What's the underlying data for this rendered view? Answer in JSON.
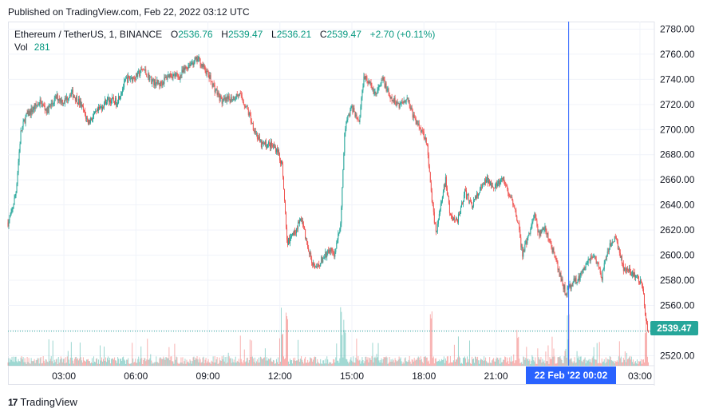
{
  "header": {
    "published": "Published on TradingView.com, Feb 22, 2022 03:12 UTC"
  },
  "legend": {
    "symbol": "Ethereum / TetherUS, 1, BINANCE",
    "o_label": "O",
    "o_value": "2536.76",
    "h_label": "H",
    "h_value": "2539.47",
    "l_label": "L",
    "l_value": "2536.21",
    "c_label": "C",
    "c_value": "2539.47",
    "change": "+2.70 (+0.11%)",
    "vol_label": "Vol",
    "vol_value": "281"
  },
  "crosshair": {
    "date_label": "22 Feb '22   00:02"
  },
  "brand": {
    "logo": "17",
    "name": "TradingView"
  },
  "colors": {
    "up": "#26a69a",
    "down": "#ef5350",
    "crosshair": "#2962ff",
    "grid": "#f0f3fa",
    "price_line": "#26a69a"
  },
  "chart_data": {
    "type": "candlestick",
    "title": "Ethereum / TetherUS, 1, BINANCE",
    "interval": "1 minute",
    "y_axis": {
      "ticks": [
        2520,
        2540,
        2560,
        2580,
        2600,
        2620,
        2640,
        2660,
        2680,
        2700,
        2720,
        2740,
        2760,
        2780
      ],
      "tick_labels": [
        "2520.00",
        "2540.00",
        "2560.00",
        "2580.00",
        "2600.00",
        "2620.00",
        "2640.00",
        "2660.00",
        "2680.00",
        "2700.00",
        "2720.00",
        "2740.00",
        "2760.00",
        "2780.00"
      ],
      "range": [
        2512,
        2786
      ]
    },
    "x_axis": {
      "tick_labels": [
        "03:00",
        "06:00",
        "09:00",
        "12:00",
        "15:00",
        "18:00",
        "21:00",
        "03:00"
      ],
      "tick_hours": [
        3,
        6,
        9,
        12,
        15,
        18,
        21,
        27
      ],
      "range_hours": [
        0.67,
        27.6
      ]
    },
    "last_price": 2539.47,
    "last_price_label": "2539.47",
    "crosshair_hour": 24.03,
    "price_path": [
      [
        0.67,
        2626
      ],
      [
        0.8,
        2632
      ],
      [
        1.0,
        2650
      ],
      [
        1.2,
        2697
      ],
      [
        1.4,
        2710
      ],
      [
        1.7,
        2716
      ],
      [
        2.0,
        2722
      ],
      [
        2.3,
        2715
      ],
      [
        2.7,
        2726
      ],
      [
        3.0,
        2722
      ],
      [
        3.3,
        2730
      ],
      [
        3.7,
        2720
      ],
      [
        4.0,
        2706
      ],
      [
        4.4,
        2714
      ],
      [
        4.8,
        2724
      ],
      [
        5.2,
        2722
      ],
      [
        5.6,
        2740
      ],
      [
        6.0,
        2742
      ],
      [
        6.3,
        2748
      ],
      [
        6.7,
        2738
      ],
      [
        7.0,
        2736
      ],
      [
        7.4,
        2744
      ],
      [
        7.8,
        2742
      ],
      [
        8.2,
        2752
      ],
      [
        8.6,
        2756
      ],
      [
        9.0,
        2744
      ],
      [
        9.3,
        2732
      ],
      [
        9.6,
        2722
      ],
      [
        10.0,
        2725
      ],
      [
        10.3,
        2728
      ],
      [
        10.6,
        2718
      ],
      [
        10.9,
        2702
      ],
      [
        11.2,
        2688
      ],
      [
        11.6,
        2688
      ],
      [
        11.9,
        2684
      ],
      [
        12.1,
        2670
      ],
      [
        12.3,
        2610
      ],
      [
        12.6,
        2618
      ],
      [
        12.9,
        2630
      ],
      [
        13.2,
        2602
      ],
      [
        13.5,
        2588
      ],
      [
        13.8,
        2598
      ],
      [
        14.1,
        2604
      ],
      [
        14.3,
        2600
      ],
      [
        14.55,
        2630
      ],
      [
        14.7,
        2702
      ],
      [
        15.0,
        2718
      ],
      [
        15.3,
        2706
      ],
      [
        15.5,
        2744
      ],
      [
        15.8,
        2734
      ],
      [
        16.0,
        2728
      ],
      [
        16.3,
        2740
      ],
      [
        16.6,
        2724
      ],
      [
        17.0,
        2720
      ],
      [
        17.3,
        2726
      ],
      [
        17.6,
        2708
      ],
      [
        17.9,
        2700
      ],
      [
        18.1,
        2692
      ],
      [
        18.3,
        2650
      ],
      [
        18.5,
        2618
      ],
      [
        18.7,
        2640
      ],
      [
        18.9,
        2660
      ],
      [
        19.1,
        2630
      ],
      [
        19.4,
        2628
      ],
      [
        19.7,
        2650
      ],
      [
        20.0,
        2640
      ],
      [
        20.3,
        2650
      ],
      [
        20.6,
        2660
      ],
      [
        21.0,
        2655
      ],
      [
        21.3,
        2660
      ],
      [
        21.6,
        2646
      ],
      [
        21.9,
        2628
      ],
      [
        22.1,
        2600
      ],
      [
        22.3,
        2612
      ],
      [
        22.6,
        2632
      ],
      [
        22.8,
        2616
      ],
      [
        23.0,
        2622
      ],
      [
        23.3,
        2608
      ],
      [
        23.6,
        2588
      ],
      [
        23.9,
        2570
      ],
      [
        24.2,
        2578
      ],
      [
        24.5,
        2582
      ],
      [
        24.8,
        2596
      ],
      [
        25.1,
        2600
      ],
      [
        25.4,
        2582
      ],
      [
        25.7,
        2606
      ],
      [
        26.0,
        2614
      ],
      [
        26.3,
        2590
      ],
      [
        26.6,
        2586
      ],
      [
        26.9,
        2582
      ],
      [
        27.1,
        2575
      ],
      [
        27.25,
        2548
      ],
      [
        27.35,
        2539.5
      ]
    ]
  }
}
